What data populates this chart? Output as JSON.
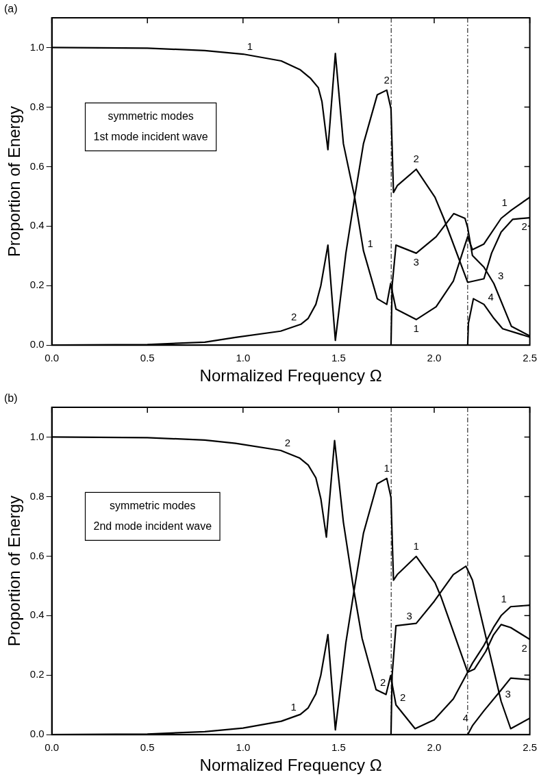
{
  "chart_data": [
    {
      "type": "line",
      "title": "(a)",
      "xlabel": "Normalized Frequency Ω",
      "ylabel": "Proportion of Energy",
      "xlim": [
        0,
        2.5
      ],
      "ylim": [
        0,
        1.1
      ],
      "xticks": [
        {
          "value": 0,
          "label": "0.0"
        },
        {
          "value": 0.5,
          "label": "0.5"
        },
        {
          "value": 1,
          "label": "1.0"
        },
        {
          "value": 1.5,
          "label": "1.5"
        },
        {
          "value": 2,
          "label": "2.0"
        },
        {
          "value": 2.5,
          "label": "2.5"
        }
      ],
      "yticks": [
        {
          "value": 0,
          "label": "0.0"
        },
        {
          "value": 0.2,
          "label": "0.2"
        },
        {
          "value": 0.4,
          "label": "0.4"
        },
        {
          "value": 0.6,
          "label": "0.6"
        },
        {
          "value": 0.8,
          "label": "0.8"
        },
        {
          "value": 1,
          "label": "1.0"
        }
      ],
      "grid": false,
      "legend": false,
      "marker": "none",
      "line_style": "solid",
      "series": [
        {
          "color": "#000000",
          "x": [
            0,
            0.5,
            0.8,
            1.0,
            1.2,
            1.3,
            1.354,
            1.394,
            1.413,
            1.444,
            1.483,
            1.525,
            1.584,
            1.63,
            1.702,
            1.752,
            1.772,
            1.8,
            1.906,
            2.01,
            2.1,
            2.155,
            2.175,
            2.2,
            2.26,
            2.35,
            2.404,
            2.5
          ],
          "values": [
            1.0,
            0.998,
            0.99,
            0.978,
            0.955,
            0.925,
            0.896,
            0.865,
            0.818,
            0.657,
            0.98,
            0.677,
            0.497,
            0.317,
            0.156,
            0.137,
            0.207,
            0.121,
            0.086,
            0.129,
            0.215,
            0.325,
            0.364,
            0.321,
            0.34,
            0.426,
            0.454,
            0.497
          ]
        },
        {
          "color": "#000000",
          "x": [
            0,
            0.5,
            0.8,
            0.961,
            1.197,
            1.302,
            1.341,
            1.381,
            1.407,
            1.444,
            1.483,
            1.538,
            1.584,
            1.63,
            1.702,
            1.752,
            1.774,
            1.787,
            1.807,
            1.906,
            2.004,
            2.05,
            2.175,
            2.26,
            2.3,
            2.35,
            2.411,
            2.5
          ],
          "values": [
            0,
            0.002,
            0.01,
            0.026,
            0.047,
            0.07,
            0.09,
            0.137,
            0.2,
            0.336,
            0.016,
            0.309,
            0.497,
            0.677,
            0.841,
            0.857,
            0.794,
            0.513,
            0.536,
            0.591,
            0.497,
            0.426,
            0.211,
            0.223,
            0.309,
            0.38,
            0.423,
            0.428
          ]
        },
        {
          "color": "#000000",
          "x": [
            1.774,
            1.78,
            1.8,
            1.906,
            2.01,
            2.102,
            2.161,
            2.175,
            2.2,
            2.26,
            2.312,
            2.404,
            2.5
          ],
          "values": [
            0,
            0.2,
            0.336,
            0.309,
            0.364,
            0.442,
            0.426,
            0.395,
            0.301,
            0.262,
            0.207,
            0.063,
            0.031
          ]
        },
        {
          "color": "#000000",
          "x": [
            2.175,
            2.179,
            2.205,
            2.26,
            2.312,
            2.358,
            2.5
          ],
          "values": [
            0,
            0.074,
            0.156,
            0.137,
            0.09,
            0.055,
            0.027
          ]
        }
      ],
      "ref_lines": [
        {
          "axis": "x",
          "value": 1.775,
          "color": "#000000",
          "line_style": "dashed"
        },
        {
          "axis": "x",
          "value": 2.175,
          "color": "#000000",
          "line_style": "dashed"
        }
      ],
      "annotations": [
        "symmetric modes",
        "1st mode incident wave",
        {
          "text": "1",
          "x": 1.0,
          "y": 0.978
        },
        {
          "text": "2",
          "x": 1.302,
          "y": 0.07
        },
        {
          "text": "2",
          "x": 1.752,
          "y": 0.857
        },
        {
          "text": "1",
          "x": 1.63,
          "y": 0.317
        },
        {
          "text": "2",
          "x": 1.906,
          "y": 0.591
        },
        {
          "text": "3",
          "x": 1.906,
          "y": 0.309
        },
        {
          "text": "1",
          "x": 1.906,
          "y": 0.086
        },
        {
          "text": "1",
          "x": 2.404,
          "y": 0.454
        },
        {
          "text": "2",
          "x": 2.5,
          "y": 0.428
        },
        {
          "text": "3",
          "x": 2.312,
          "y": 0.207
        },
        {
          "text": "4",
          "x": 2.26,
          "y": 0.137
        }
      ]
    },
    {
      "type": "line",
      "title": "(b)",
      "xlabel": "Normalized Frequency Ω",
      "ylabel": "Proportion of Energy",
      "xlim": [
        0,
        2.5
      ],
      "ylim": [
        0,
        1.1
      ],
      "xticks": [
        {
          "value": 0,
          "label": "0.0"
        },
        {
          "value": 0.5,
          "label": "0.5"
        },
        {
          "value": 1,
          "label": "1.0"
        },
        {
          "value": 1.5,
          "label": "1.5"
        },
        {
          "value": 2,
          "label": "2.0"
        },
        {
          "value": 2.5,
          "label": "2.5"
        }
      ],
      "yticks": [
        {
          "value": 0,
          "label": "0.0"
        },
        {
          "value": 0.2,
          "label": "0.2"
        },
        {
          "value": 0.4,
          "label": "0.4"
        },
        {
          "value": 0.6,
          "label": "0.6"
        },
        {
          "value": 0.8,
          "label": "0.8"
        },
        {
          "value": 1,
          "label": "1.0"
        }
      ],
      "grid": false,
      "legend": false,
      "marker": "none",
      "line_style": "solid",
      "series": [
        {
          "color": "#000000",
          "x": [
            0,
            0.5,
            0.8,
            1.0,
            1.2,
            1.3,
            1.341,
            1.381,
            1.407,
            1.444,
            1.483,
            1.538,
            1.584,
            1.63,
            1.702,
            1.752,
            1.774,
            1.787,
            1.807,
            1.906,
            2.004,
            2.035,
            2.175,
            2.2,
            2.26,
            2.31,
            2.35,
            2.4,
            2.5
          ],
          "values": [
            0,
            0.002,
            0.01,
            0.022,
            0.045,
            0.068,
            0.09,
            0.137,
            0.2,
            0.336,
            0.016,
            0.309,
            0.497,
            0.677,
            0.843,
            0.861,
            0.797,
            0.519,
            0.538,
            0.599,
            0.511,
            0.464,
            0.21,
            0.24,
            0.3,
            0.36,
            0.4,
            0.43,
            0.435
          ]
        },
        {
          "color": "#000000",
          "x": [
            0,
            0.5,
            0.8,
            0.961,
            1.197,
            1.295,
            1.341,
            1.381,
            1.407,
            1.436,
            1.479,
            1.525,
            1.577,
            1.623,
            1.696,
            1.748,
            1.772,
            1.8,
            1.9,
            2.0,
            2.1,
            2.175,
            2.21,
            2.27,
            2.31,
            2.35,
            2.4,
            2.5
          ],
          "values": [
            1.0,
            0.998,
            0.99,
            0.979,
            0.955,
            0.93,
            0.906,
            0.863,
            0.793,
            0.664,
            0.988,
            0.714,
            0.495,
            0.323,
            0.151,
            0.135,
            0.198,
            0.1,
            0.02,
            0.05,
            0.12,
            0.21,
            0.22,
            0.28,
            0.335,
            0.37,
            0.36,
            0.32
          ]
        },
        {
          "color": "#000000",
          "x": [
            1.774,
            1.78,
            1.8,
            1.906,
            2.0,
            2.1,
            2.166,
            2.2,
            2.35,
            2.4,
            2.5
          ],
          "values": [
            0,
            0.2,
            0.366,
            0.374,
            0.448,
            0.538,
            0.566,
            0.519,
            0.112,
            0.02,
            0.055
          ]
        },
        {
          "color": "#000000",
          "x": [
            2.175,
            2.2,
            2.26,
            2.35,
            2.4,
            2.5
          ],
          "values": [
            0,
            0.03,
            0.08,
            0.15,
            0.19,
            0.185
          ]
        }
      ],
      "ref_lines": [
        {
          "axis": "x",
          "value": 1.775,
          "color": "#000000",
          "line_style": "dashed"
        },
        {
          "axis": "x",
          "value": 2.175,
          "color": "#000000",
          "line_style": "dashed"
        }
      ],
      "annotations": [
        "symmetric modes",
        "2nd mode incident wave",
        {
          "text": "2",
          "x": 1.197,
          "y": 0.955
        },
        {
          "text": "1",
          "x": 1.752,
          "y": 0.861
        },
        {
          "text": "1",
          "x": 1.906,
          "y": 0.599
        },
        {
          "text": "3",
          "x": 1.906,
          "y": 0.374
        },
        {
          "text": "2",
          "x": 1.696,
          "y": 0.151
        },
        {
          "text": "1",
          "x": 2.4,
          "y": 0.43
        },
        {
          "text": "2",
          "x": 2.5,
          "y": 0.32
        },
        {
          "text": "3",
          "x": 2.35,
          "y": 0.112
        },
        {
          "text": "1",
          "x": 1.3,
          "y": 0.068
        },
        {
          "text": "2",
          "x": 1.8,
          "y": 0.1
        },
        {
          "text": "4",
          "x": 2.2,
          "y": 0.03
        }
      ]
    }
  ]
}
